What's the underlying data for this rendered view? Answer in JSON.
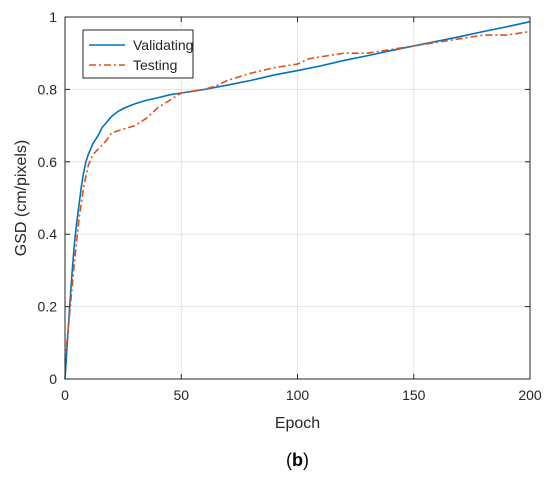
{
  "chart_data": {
    "type": "line",
    "title": "",
    "xlabel": "Epoch",
    "ylabel": "GSD (cm/pixels)",
    "xlim": [
      0,
      200
    ],
    "ylim": [
      0,
      1
    ],
    "x_ticks": [
      0,
      50,
      100,
      150,
      200
    ],
    "y_ticks": [
      0,
      0.2,
      0.4,
      0.6,
      0.8,
      1
    ],
    "x_tick_labels": [
      "0",
      "50",
      "100",
      "150",
      "200"
    ],
    "y_tick_labels": [
      "0",
      "0.2",
      "0.4",
      "0.6",
      "0.8",
      "1"
    ],
    "grid": true,
    "legend_position": "top-left",
    "series": [
      {
        "name": "Validating",
        "color": "#0072BD",
        "style": "solid",
        "x": [
          0,
          1,
          2,
          3,
          4,
          5,
          6,
          7,
          8,
          9,
          10,
          12,
          14,
          16,
          18,
          20,
          23,
          26,
          30,
          35,
          40,
          45,
          50,
          60,
          70,
          80,
          90,
          100,
          110,
          120,
          130,
          140,
          150,
          160,
          170,
          180,
          190,
          200
        ],
        "values": [
          0.0,
          0.1,
          0.2,
          0.29,
          0.37,
          0.43,
          0.48,
          0.53,
          0.57,
          0.6,
          0.62,
          0.65,
          0.67,
          0.695,
          0.71,
          0.725,
          0.74,
          0.75,
          0.76,
          0.77,
          0.777,
          0.785,
          0.79,
          0.8,
          0.812,
          0.825,
          0.84,
          0.852,
          0.865,
          0.88,
          0.893,
          0.907,
          0.92,
          0.933,
          0.946,
          0.96,
          0.973,
          0.987
        ]
      },
      {
        "name": "Testing",
        "color": "#D95319",
        "style": "dash-dot",
        "x": [
          0,
          2,
          4,
          6,
          8,
          10,
          12,
          15,
          18,
          20,
          25,
          30,
          35,
          40,
          45,
          50,
          55,
          60,
          65,
          70,
          80,
          90,
          100,
          105,
          110,
          120,
          130,
          140,
          150,
          160,
          170,
          180,
          190,
          200
        ],
        "values": [
          0.05,
          0.18,
          0.32,
          0.44,
          0.53,
          0.59,
          0.62,
          0.64,
          0.66,
          0.68,
          0.69,
          0.7,
          0.72,
          0.75,
          0.77,
          0.79,
          0.795,
          0.8,
          0.81,
          0.825,
          0.845,
          0.86,
          0.87,
          0.885,
          0.89,
          0.9,
          0.9,
          0.91,
          0.92,
          0.93,
          0.94,
          0.95,
          0.95,
          0.96
        ]
      }
    ]
  },
  "caption": {
    "open": "(",
    "letter": "b",
    "close": ")"
  }
}
